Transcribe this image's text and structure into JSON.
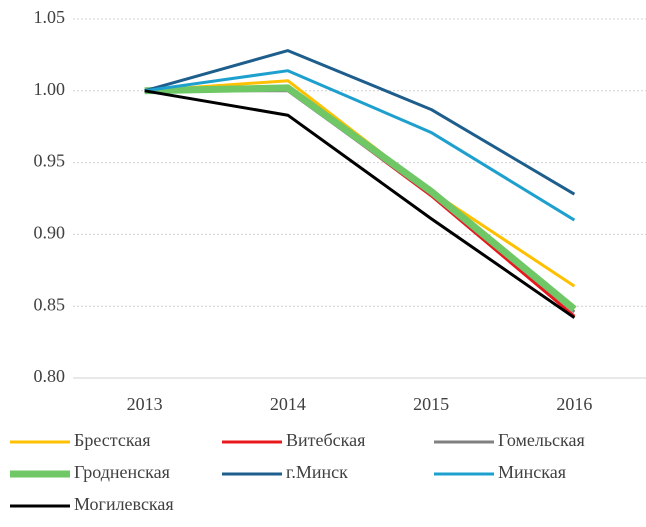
{
  "chart_data": {
    "type": "line",
    "categories": [
      "2013",
      "2014",
      "2015",
      "2016"
    ],
    "series": [
      {
        "name": "Брестская",
        "color": "#ffc000",
        "values": [
          1.0,
          1.007,
          0.93,
          0.864
        ]
      },
      {
        "name": "Витебская",
        "color": "#e8191c",
        "values": [
          1.0,
          1.001,
          0.927,
          0.843
        ]
      },
      {
        "name": "Гомельская",
        "color": "#808080",
        "values": [
          1.0,
          1.0,
          0.928,
          0.846
        ]
      },
      {
        "name": "Гродненская",
        "color": "#6fc766",
        "values": [
          1.0,
          1.002,
          0.93,
          0.848
        ]
      },
      {
        "name": "г.Минск",
        "color": "#1d5e8c",
        "values": [
          1.0,
          1.028,
          0.987,
          0.928
        ]
      },
      {
        "name": "Минская",
        "color": "#1ea0cf",
        "values": [
          1.0,
          1.014,
          0.971,
          0.91
        ]
      },
      {
        "name": "Могилевская",
        "color": "#000000",
        "values": [
          1.0,
          0.983,
          0.911,
          0.842
        ]
      }
    ],
    "ylim": [
      0.8,
      1.05
    ],
    "yticks": [
      {
        "value": 0.8,
        "label": "0.80"
      },
      {
        "value": 0.85,
        "label": "0.85"
      },
      {
        "value": 0.9,
        "label": "0.90"
      },
      {
        "value": 0.95,
        "label": "0.95"
      },
      {
        "value": 1.0,
        "label": "1.00"
      },
      {
        "value": 1.05,
        "label": "1.05"
      }
    ],
    "grid": true
  }
}
